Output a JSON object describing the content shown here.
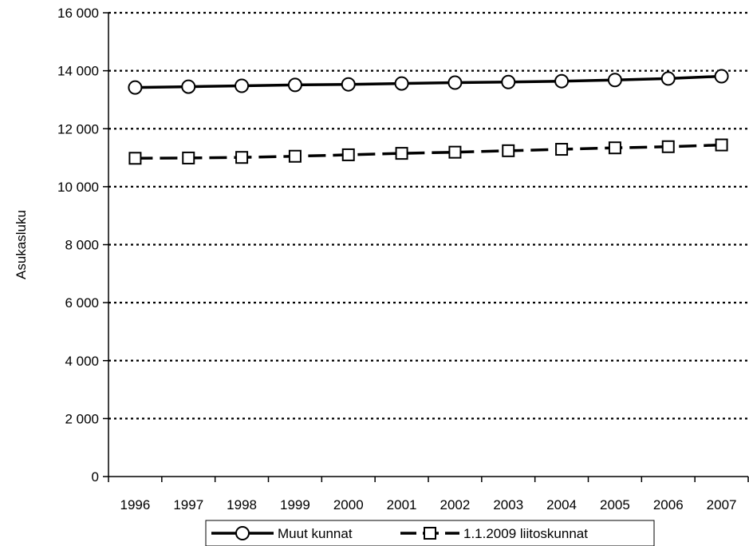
{
  "chart_data": {
    "type": "line",
    "title": "",
    "xlabel": "",
    "ylabel": "Asukasluku",
    "ylim": [
      0,
      16000
    ],
    "yticks": [
      0,
      2000,
      4000,
      6000,
      8000,
      10000,
      12000,
      14000,
      16000
    ],
    "ytick_labels": [
      "0",
      "2 000",
      "4 000",
      "6 000",
      "8 000",
      "10 000",
      "12 000",
      "14 000",
      "16 000"
    ],
    "categories": [
      "1996",
      "1997",
      "1998",
      "1999",
      "2000",
      "2001",
      "2002",
      "2003",
      "2004",
      "2005",
      "2006",
      "2007"
    ],
    "grid": "horizontal dotted",
    "legend_position": "bottom",
    "series": [
      {
        "name": "Muut kunnat",
        "marker": "circle",
        "line_style": "solid",
        "color": "#000000",
        "values": [
          13420,
          13450,
          13480,
          13510,
          13530,
          13560,
          13590,
          13610,
          13640,
          13680,
          13730,
          13810
        ]
      },
      {
        "name": "1.1.2009 liitoskunnat",
        "marker": "square",
        "line_style": "dashed",
        "color": "#000000",
        "values": [
          10980,
          10990,
          11010,
          11050,
          11100,
          11150,
          11190,
          11240,
          11290,
          11340,
          11380,
          11440
        ]
      }
    ]
  }
}
